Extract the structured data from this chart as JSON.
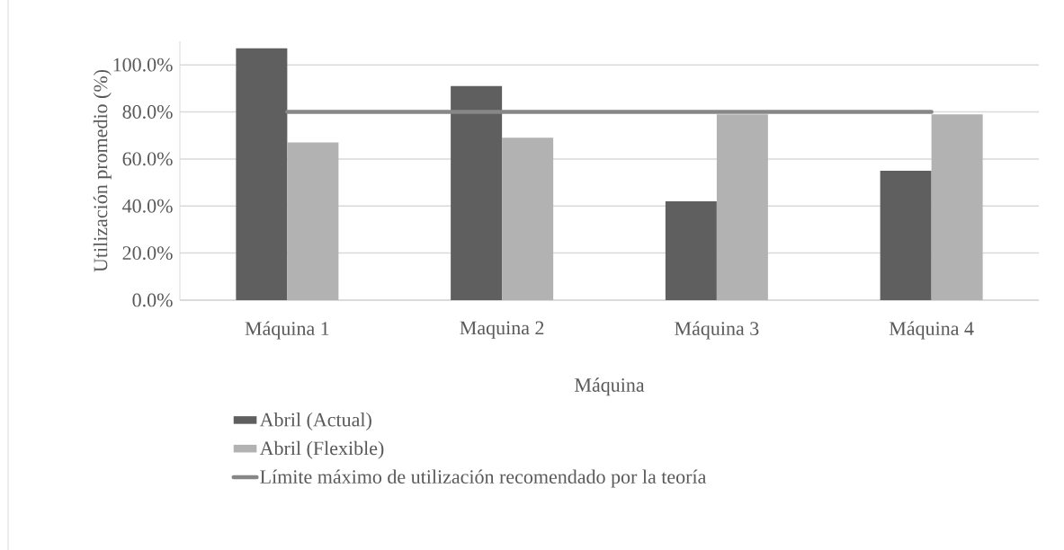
{
  "chart_data": {
    "type": "bar",
    "xlabel": "Máquina",
    "ylabel": "Utilización promedio (%)",
    "categories": [
      "Máquina 1",
      "Maquina 2",
      "Máquina 3",
      "Máquina 4"
    ],
    "series": [
      {
        "name": "Abril (Actual)",
        "color": "#5f5f5f",
        "values": [
          107,
          91,
          42,
          55
        ]
      },
      {
        "name": "Abril (Flexible)",
        "color": "#b2b2b2",
        "values": [
          67,
          69,
          79,
          79
        ]
      },
      {
        "name": "Límite máximo de utilización recomendado por la teoría",
        "type": "line",
        "color": "#878787",
        "values": [
          80,
          80,
          80,
          80
        ]
      }
    ],
    "ylim": [
      0,
      110
    ],
    "yticks": [
      {
        "value": 0,
        "label": "0.0%"
      },
      {
        "value": 20,
        "label": "20.0%"
      },
      {
        "value": 40,
        "label": "40.0%"
      },
      {
        "value": 60,
        "label": "60.0%"
      },
      {
        "value": 80,
        "label": "80.0%"
      },
      {
        "value": 100,
        "label": "100.0%"
      }
    ],
    "grid": "y",
    "legend": "bottom"
  }
}
